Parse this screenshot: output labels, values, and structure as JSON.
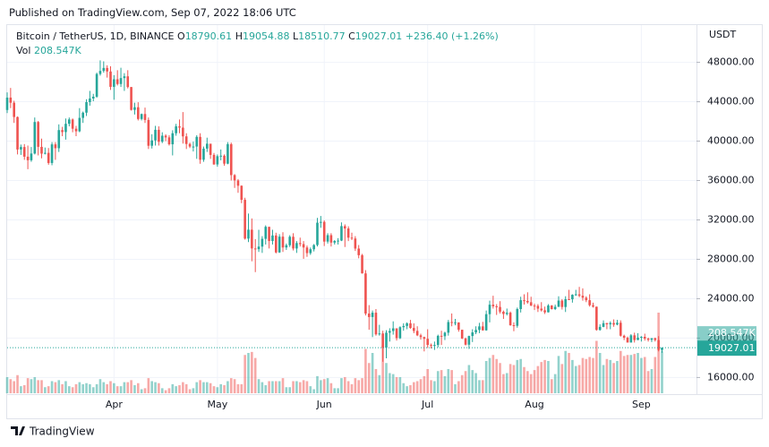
{
  "header": {
    "published": "Published on TradingView.com, Sep 07, 2022 18:06 UTC",
    "symbol": "Bitcoin / TetherUS, 1D, BINANCE",
    "o": "O",
    "h": "H",
    "l": "L",
    "c": "C",
    "change": "+236.40 (+1.26%)",
    "vol": "Vol",
    "vol_value": "208.547K",
    "unit": "USDT"
  },
  "footer": {
    "brand": "TradingView"
  },
  "chart_data": {
    "type": "candlestick",
    "up_color": "#26a69a",
    "down_color": "#ef5350",
    "grid": true,
    "xlim": [
      0,
      200
    ],
    "xticks": [
      {
        "value": 31,
        "label": "Apr"
      },
      {
        "value": 61,
        "label": "May"
      },
      {
        "value": 92,
        "label": "Jun"
      },
      {
        "value": 122,
        "label": "Jul"
      },
      {
        "value": 153,
        "label": "Aug"
      },
      {
        "value": 184,
        "label": "Sep"
      }
    ],
    "ylim": [
      14400,
      51600
    ],
    "yticks": [
      {
        "value": 16000,
        "label": "16000.00"
      },
      {
        "value": 20000,
        "label": "20000.00"
      },
      {
        "value": 24000,
        "label": "24000.00"
      },
      {
        "value": 28000,
        "label": "28000.00"
      },
      {
        "value": 32000,
        "label": "32000.00"
      },
      {
        "value": 36000,
        "label": "36000.00"
      },
      {
        "value": 40000,
        "label": "40000.00"
      },
      {
        "value": 44000,
        "label": "44000.00"
      },
      {
        "value": 48000,
        "label": "48000.00"
      }
    ],
    "vol_ylim": [
      0,
      1000
    ],
    "open": [
      43160,
      44420,
      43900,
      42450,
      39150,
      39400,
      38420,
      38060,
      38740,
      41940,
      39420,
      38730,
      38810,
      37780,
      39670,
      39280,
      41120,
      40920,
      41760,
      42200,
      41260,
      41000,
      42360,
      42890,
      43960,
      44330,
      44510,
      46820,
      47130,
      47430,
      47070,
      45510,
      46280,
      45800,
      46400,
      46580,
      45490,
      43170,
      43440,
      42250,
      42750,
      42150,
      39530,
      40070,
      41150,
      39940,
      40550,
      40380,
      39680,
      40800,
      41500,
      41370,
      40480,
      39710,
      39450,
      39450,
      40430,
      38110,
      39240,
      39740,
      38600,
      37630,
      38470,
      38520,
      37710,
      39690,
      36550,
      36010,
      35470,
      34040,
      30100,
      31010,
      29100,
      29030,
      29290,
      30080,
      31300,
      29860,
      30420,
      28700,
      30300,
      29200,
      29430,
      30290,
      29100,
      29650,
      29540,
      29200,
      28630,
      29020,
      29450,
      31720,
      31800,
      29800,
      30450,
      29700,
      29860,
      29900,
      31370,
      31130,
      30200,
      30110,
      29090,
      28420,
      26570,
      22490,
      22140,
      22580,
      20380,
      20470,
      19020,
      20550,
      20720,
      20990,
      19990,
      21110,
      21230,
      21500,
      21030,
      20730,
      20280,
      20100,
      19930,
      19300,
      19240,
      19300,
      20230,
      20190,
      20550,
      21630,
      21590,
      21590,
      20850,
      19960,
      19330,
      20210,
      20580,
      20830,
      21190,
      20790,
      22430,
      23390,
      23230,
      23160,
      22680,
      22450,
      22580,
      21310,
      21250,
      22950,
      23850,
      23770,
      23640,
      23300,
      23270,
      22990,
      22820,
      22620,
      23310,
      22950,
      23180,
      23810,
      23160,
      23950,
      23940,
      24400,
      24440,
      24300,
      24100,
      23850,
      23340,
      23190,
      20830,
      21140,
      21520,
      21400,
      21530,
      21370,
      21560,
      20240,
      20040,
      19550,
      20280,
      19800,
      20050,
      20130,
      19950,
      19830,
      19990,
      19800,
      18790.61
    ],
    "high": [
      44950,
      45400,
      44100,
      42500,
      39650,
      39700,
      39550,
      39400,
      42400,
      42050,
      40250,
      39350,
      39300,
      39900,
      39900,
      41700,
      41450,
      42300,
      42400,
      42300,
      41550,
      43350,
      43000,
      44250,
      45100,
      44800,
      46950,
      48200,
      48100,
      47700,
      47600,
      46700,
      47200,
      47450,
      46900,
      47200,
      45500,
      43900,
      43950,
      42800,
      43400,
      42400,
      40700,
      41550,
      41500,
      40900,
      40700,
      40600,
      41100,
      41750,
      42200,
      42950,
      40800,
      39850,
      39950,
      40600,
      40800,
      39450,
      40350,
      39450,
      38800,
      38650,
      39150,
      38650,
      39900,
      39850,
      36650,
      36150,
      35500,
      34250,
      32650,
      32150,
      30050,
      31000,
      30350,
      31450,
      31300,
      31000,
      30700,
      30550,
      30750,
      29600,
      30450,
      30650,
      29850,
      30200,
      29850,
      29400,
      29200,
      29550,
      32200,
      32400,
      31950,
      30650,
      30650,
      29950,
      30150,
      31750,
      31550,
      31350,
      30700,
      30350,
      29450,
      28550,
      26900,
      23350,
      22800,
      22950,
      21350,
      20750,
      20800,
      21000,
      21700,
      21000,
      21200,
      21500,
      21600,
      21850,
      21500,
      21200,
      20450,
      20150,
      20900,
      19450,
      19650,
      20350,
      20750,
      20650,
      21850,
      22500,
      21950,
      21600,
      20850,
      20050,
      20250,
      20900,
      21200,
      21550,
      21650,
      22800,
      23800,
      24300,
      23450,
      23750,
      22800,
      23000,
      22700,
      21600,
      23100,
      24200,
      24450,
      24650,
      24200,
      23500,
      23450,
      23650,
      23200,
      23450,
      23350,
      23400,
      24250,
      23950,
      24250,
      24900,
      24450,
      24900,
      25200,
      25050,
      24250,
      24450,
      23600,
      23200,
      21400,
      21800,
      21550,
      21700,
      21900,
      21850,
      21800,
      20350,
      20150,
      20400,
      20550,
      20500,
      20200,
      20450,
      20050,
      20000,
      20050,
      20200,
      19054.88
    ],
    "low": [
      42850,
      43350,
      41850,
      38650,
      38600,
      38100,
      37150,
      37900,
      38650,
      38550,
      38250,
      38650,
      37600,
      37550,
      38100,
      38900,
      40500,
      40150,
      41500,
      40900,
      40500,
      40900,
      41850,
      42550,
      43600,
      44050,
      44400,
      46650,
      46950,
      46450,
      45200,
      44200,
      45650,
      45500,
      45100,
      45350,
      43100,
      42700,
      42100,
      42100,
      41850,
      39200,
      39250,
      39550,
      39550,
      39800,
      40000,
      39550,
      38550,
      40550,
      40800,
      39750,
      39200,
      39300,
      38950,
      38200,
      37700,
      37900,
      38900,
      38200,
      37600,
      37400,
      38050,
      37500,
      37650,
      36000,
      35250,
      34750,
      33700,
      30000,
      29750,
      27800,
      26700,
      28750,
      28650,
      29500,
      29100,
      29500,
      28600,
      28650,
      28750,
      28950,
      29250,
      28900,
      28650,
      29300,
      28050,
      28250,
      28450,
      28800,
      29300,
      31200,
      29350,
      29600,
      29300,
      29500,
      29500,
      29850,
      29250,
      29850,
      29950,
      28850,
      28100,
      26550,
      22300,
      20850,
      20100,
      20250,
      20250,
      17600,
      17950,
      19650,
      20350,
      19750,
      19900,
      20750,
      20900,
      20950,
      20500,
      20200,
      19850,
      18650,
      19000,
      18950,
      18800,
      19050,
      19300,
      19800,
      20250,
      21200,
      21300,
      20650,
      19900,
      19250,
      18900,
      19600,
      20400,
      20500,
      20750,
      20750,
      21600,
      23000,
      22350,
      22500,
      21950,
      22300,
      21250,
      20700,
      21050,
      22600,
      23400,
      23500,
      23250,
      22850,
      22650,
      22700,
      22450,
      22600,
      22900,
      22850,
      23150,
      22900,
      22650,
      23900,
      23600,
      24300,
      24150,
      23800,
      23650,
      23200,
      23100,
      20750,
      20750,
      21100,
      20900,
      20900,
      21150,
      21300,
      20150,
      19800,
      19550,
      19550,
      19550,
      19800,
      19650,
      19750,
      19650,
      19600,
      19650,
      18650,
      18510.77
    ],
    "close": [
      44420,
      43900,
      42450,
      39150,
      39400,
      38420,
      38060,
      38740,
      41940,
      39420,
      38730,
      38810,
      37780,
      39670,
      39280,
      41120,
      40920,
      41760,
      42200,
      41260,
      41000,
      42360,
      42890,
      43960,
      44330,
      44510,
      46820,
      47130,
      47430,
      47070,
      45510,
      46280,
      45800,
      46400,
      46580,
      45490,
      43170,
      43440,
      42250,
      42750,
      42150,
      39530,
      40070,
      41150,
      39940,
      40550,
      40380,
      39680,
      40800,
      41500,
      41370,
      40480,
      39710,
      39450,
      39450,
      40430,
      38110,
      39240,
      39740,
      38600,
      37630,
      38470,
      38520,
      37710,
      39690,
      36550,
      36010,
      35470,
      34040,
      30100,
      31010,
      29100,
      29030,
      29290,
      30080,
      31300,
      29860,
      30420,
      28700,
      30300,
      29200,
      29430,
      30290,
      29100,
      29650,
      29540,
      29200,
      28630,
      29020,
      29450,
      31720,
      31800,
      29800,
      30450,
      29700,
      29860,
      29900,
      31370,
      31130,
      30200,
      30110,
      29090,
      28420,
      26570,
      22490,
      22140,
      22580,
      20380,
      20470,
      19020,
      20550,
      20720,
      20990,
      19990,
      21110,
      21230,
      21500,
      21030,
      20730,
      20280,
      20100,
      19930,
      19300,
      19240,
      19300,
      20230,
      20190,
      20550,
      21630,
      21590,
      21590,
      20850,
      19960,
      19330,
      20210,
      20580,
      20830,
      21190,
      20790,
      22430,
      23390,
      23230,
      23160,
      22680,
      22450,
      22580,
      21310,
      21250,
      22950,
      23850,
      23770,
      23640,
      23300,
      23270,
      22990,
      22820,
      22620,
      23310,
      22950,
      23180,
      23810,
      23160,
      23950,
      23940,
      24400,
      24440,
      24300,
      24100,
      23850,
      23340,
      23190,
      20830,
      21140,
      21520,
      21400,
      21530,
      21370,
      21560,
      20240,
      20040,
      19550,
      20280,
      19800,
      20050,
      20130,
      19950,
      19830,
      19990,
      19800,
      18790.61,
      19027.01
    ],
    "volume": [
      80,
      70,
      60,
      90,
      35,
      40,
      75,
      70,
      80,
      65,
      65,
      30,
      35,
      60,
      55,
      65,
      45,
      60,
      35,
      30,
      45,
      55,
      45,
      50,
      45,
      30,
      45,
      70,
      55,
      45,
      60,
      50,
      35,
      35,
      55,
      55,
      65,
      40,
      50,
      20,
      25,
      75,
      60,
      55,
      50,
      25,
      15,
      25,
      45,
      35,
      40,
      55,
      45,
      20,
      25,
      55,
      65,
      55,
      55,
      50,
      35,
      30,
      45,
      40,
      60,
      75,
      70,
      45,
      45,
      190,
      200,
      205,
      175,
      70,
      55,
      40,
      60,
      60,
      60,
      60,
      75,
      30,
      30,
      60,
      60,
      55,
      65,
      60,
      35,
      20,
      85,
      65,
      70,
      75,
      50,
      25,
      25,
      75,
      80,
      60,
      45,
      75,
      65,
      75,
      220,
      150,
      200,
      120,
      90,
      240,
      150,
      100,
      95,
      80,
      80,
      50,
      35,
      40,
      55,
      60,
      70,
      85,
      120,
      65,
      60,
      110,
      115,
      85,
      120,
      115,
      45,
      60,
      90,
      110,
      140,
      115,
      100,
      65,
      65,
      160,
      175,
      190,
      170,
      150,
      95,
      100,
      145,
      140,
      165,
      170,
      130,
      110,
      95,
      115,
      135,
      155,
      165,
      160,
      70,
      95,
      185,
      145,
      210,
      200,
      165,
      135,
      140,
      175,
      170,
      180,
      175,
      260,
      200,
      140,
      170,
      165,
      150,
      160,
      210,
      185,
      190,
      190,
      195,
      200,
      175,
      180,
      110,
      120,
      180,
      400,
      208.547
    ]
  }
}
